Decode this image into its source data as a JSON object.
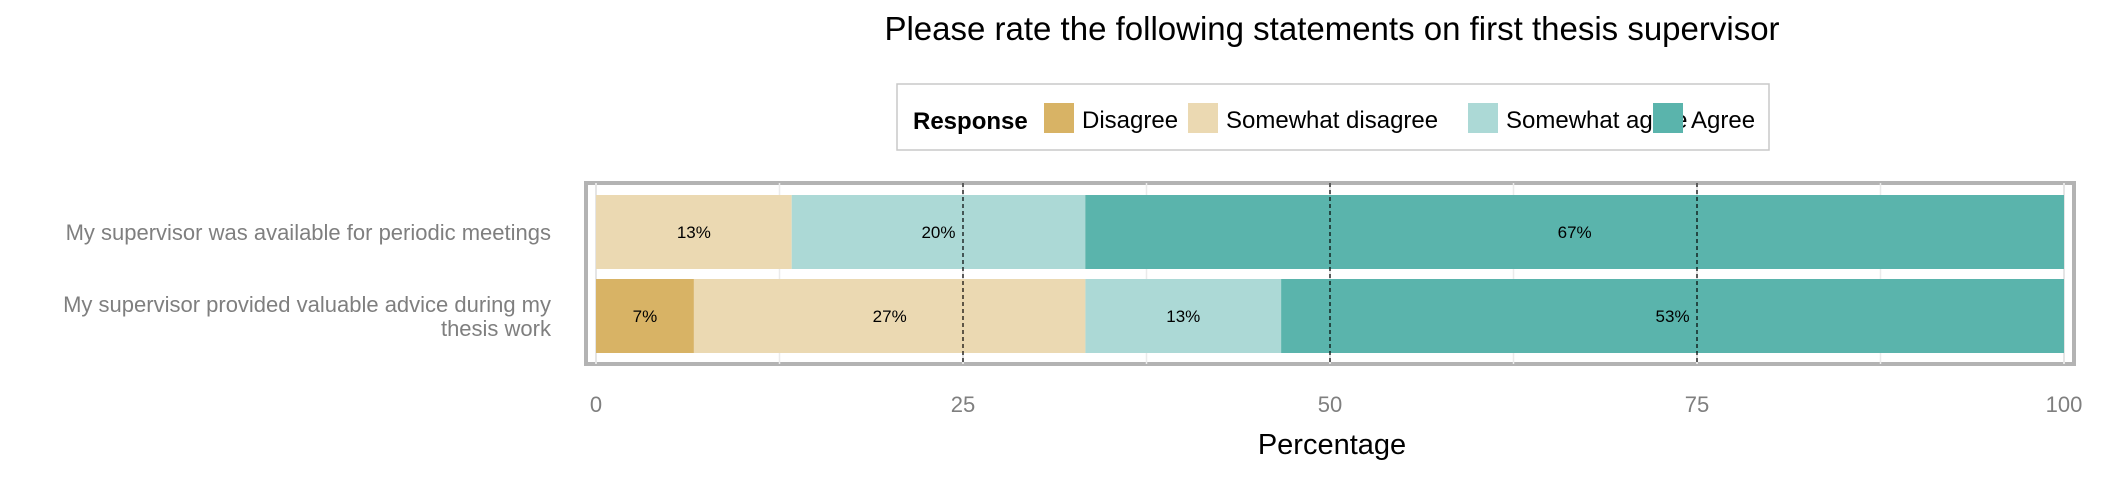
{
  "chart_data": {
    "type": "bar",
    "orientation": "horizontal",
    "stacked": true,
    "title": "Please rate the following statements on first thesis supervisor",
    "xlabel": "Percentage",
    "ylabel": "",
    "xlim": [
      0,
      100
    ],
    "xticks": [
      0,
      25,
      50,
      75,
      100
    ],
    "grid": true,
    "legend": {
      "title": "Response",
      "position": "top"
    },
    "categories": [
      [
        "My supervisor was available for periodic meetings"
      ],
      [
        "My supervisor provided valuable advice during my",
        "thesis work"
      ]
    ],
    "series": [
      {
        "name": "Disagree",
        "color": "#d8b365",
        "values": [
          0,
          6.67
        ],
        "labels": [
          "",
          "7%"
        ]
      },
      {
        "name": "Somewhat disagree",
        "color": "#ebd9b2",
        "values": [
          13.33,
          26.67
        ],
        "labels": [
          "13%",
          "27%"
        ]
      },
      {
        "name": "Somewhat agree",
        "color": "#acd9d6",
        "values": [
          20,
          13.33
        ],
        "labels": [
          "20%",
          "13%"
        ]
      },
      {
        "name": "Agree",
        "color": "#5ab4ac",
        "values": [
          66.67,
          53.33
        ],
        "labels": [
          "67%",
          "53%"
        ]
      }
    ]
  }
}
